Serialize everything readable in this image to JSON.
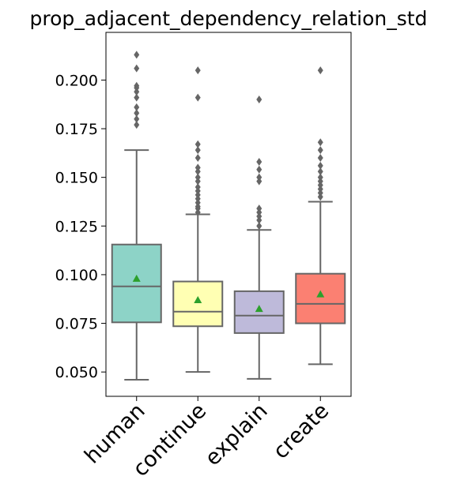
{
  "chart_data": {
    "type": "box",
    "title": "prop_adjacent_dependency_relation_std",
    "xlabel": "",
    "ylabel": "",
    "ylim": [
      0.0375,
      0.2245
    ],
    "yticks": [
      0.05,
      0.075,
      0.1,
      0.125,
      0.15,
      0.175,
      0.2
    ],
    "ytick_labels": [
      "0.050",
      "0.075",
      "0.100",
      "0.125",
      "0.150",
      "0.175",
      "0.200"
    ],
    "grid": false,
    "mean_marker_color": "#2ca02c",
    "line_color": "#666666",
    "outlier_color": "#666666",
    "categories": [
      "human",
      "continue",
      "explain",
      "create"
    ],
    "boxes": [
      {
        "name": "human",
        "color": "#8dd3c7",
        "whisker_low": 0.046,
        "q1": 0.0755,
        "median": 0.094,
        "q3": 0.1155,
        "whisker_high": 0.164,
        "mean": 0.098,
        "outliers": [
          0.177,
          0.18,
          0.183,
          0.186,
          0.191,
          0.194,
          0.196,
          0.197,
          0.206,
          0.213
        ]
      },
      {
        "name": "continue",
        "color": "#ffffb3",
        "whisker_low": 0.05,
        "q1": 0.0735,
        "median": 0.081,
        "q3": 0.0965,
        "whisker_high": 0.131,
        "mean": 0.087,
        "outliers": [
          0.132,
          0.134,
          0.135,
          0.137,
          0.139,
          0.141,
          0.143,
          0.145,
          0.148,
          0.15,
          0.153,
          0.155,
          0.16,
          0.164,
          0.167,
          0.191,
          0.205
        ]
      },
      {
        "name": "explain",
        "color": "#bebada",
        "whisker_low": 0.0465,
        "q1": 0.07,
        "median": 0.079,
        "q3": 0.0915,
        "whisker_high": 0.123,
        "mean": 0.0825,
        "outliers": [
          0.125,
          0.128,
          0.13,
          0.132,
          0.134,
          0.148,
          0.15,
          0.154,
          0.158,
          0.19
        ]
      },
      {
        "name": "create",
        "color": "#fb8072",
        "whisker_low": 0.054,
        "q1": 0.075,
        "median": 0.085,
        "q3": 0.1005,
        "whisker_high": 0.1375,
        "mean": 0.09,
        "outliers": [
          0.14,
          0.142,
          0.144,
          0.146,
          0.148,
          0.15,
          0.153,
          0.156,
          0.16,
          0.164,
          0.168,
          0.205
        ]
      }
    ]
  }
}
